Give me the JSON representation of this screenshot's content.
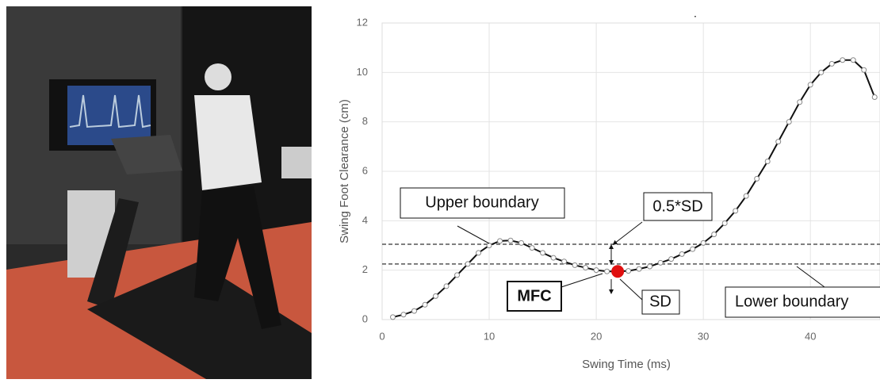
{
  "chart_data": {
    "type": "line",
    "x_label": "Swing Time (ms)",
    "y_label": "Swing Foot Clearance (cm)",
    "xlim": [
      0,
      46.5
    ],
    "ylim": [
      0,
      12
    ],
    "xticks": [
      0,
      10,
      20,
      30,
      40
    ],
    "yticks": [
      0,
      2,
      4,
      6,
      8,
      10,
      12
    ],
    "grid": true,
    "series": [
      {
        "color": "#111111",
        "x": [
          1,
          2,
          3,
          4,
          5,
          6,
          7,
          8,
          9,
          10,
          11,
          12,
          13,
          14,
          15,
          16,
          17,
          18,
          19,
          20,
          21,
          22,
          23,
          24,
          25,
          26,
          27,
          28,
          29,
          30,
          31,
          32,
          33,
          34,
          35,
          36,
          37,
          38,
          39,
          40,
          41,
          42,
          43,
          44,
          45,
          46
        ],
        "values": [
          0.1,
          0.2,
          0.35,
          0.6,
          0.95,
          1.35,
          1.8,
          2.25,
          2.7,
          3.0,
          3.18,
          3.2,
          3.1,
          2.9,
          2.7,
          2.5,
          2.35,
          2.2,
          2.1,
          2.0,
          1.95,
          1.95,
          1.97,
          2.05,
          2.15,
          2.3,
          2.45,
          2.65,
          2.85,
          3.1,
          3.45,
          3.9,
          4.4,
          5.0,
          5.7,
          6.4,
          7.2,
          8.0,
          8.8,
          9.5,
          10.0,
          10.35,
          10.5,
          10.5,
          10.1,
          9.0
        ]
      }
    ],
    "upper_boundary": 3.05,
    "lower_boundary": 2.25,
    "mfc": {
      "x": 22,
      "y": 1.95,
      "color": "#e01010"
    },
    "annotations": [
      "Upper boundary",
      "0.5*SD",
      "MFC",
      "SD",
      "Lower boundary"
    ]
  }
}
